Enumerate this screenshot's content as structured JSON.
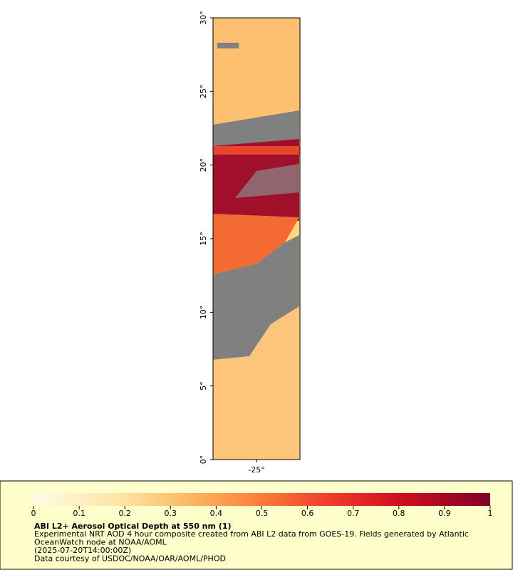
{
  "map": {
    "lat_range": [
      0,
      30
    ],
    "lon_range": [
      -28,
      -22
    ],
    "lat_ticks": [
      {
        "value": 0,
        "label": "0°"
      },
      {
        "value": 5,
        "label": "5°"
      },
      {
        "value": 10,
        "label": "10°"
      },
      {
        "value": 15,
        "label": "15°"
      },
      {
        "value": 20,
        "label": "20°"
      },
      {
        "value": 25,
        "label": "25°"
      },
      {
        "value": 30,
        "label": "30°"
      }
    ],
    "lon_ticks": [
      {
        "value": -25,
        "label": "-25°"
      }
    ]
  },
  "colorbar": {
    "range": [
      0,
      1
    ],
    "ticks": [
      0,
      0.1,
      0.2,
      0.3,
      0.4,
      0.5,
      0.6,
      0.7,
      0.8,
      0.9,
      1
    ]
  },
  "legend": {
    "title": "ABI L2+ Aerosol Optical Depth at 550 nm (1)",
    "lines": [
      "Experimental NRT AOD 4 hour composite created from ABI L2 data from GOES-19. Fields generated by Atlantic",
      "OceanWatch node at NOAA/AOML",
      "(2025-07-20T14:00:00Z)",
      "Data courtesy of USDOC/NOAA/OAR/AOML/PHOD"
    ]
  }
}
